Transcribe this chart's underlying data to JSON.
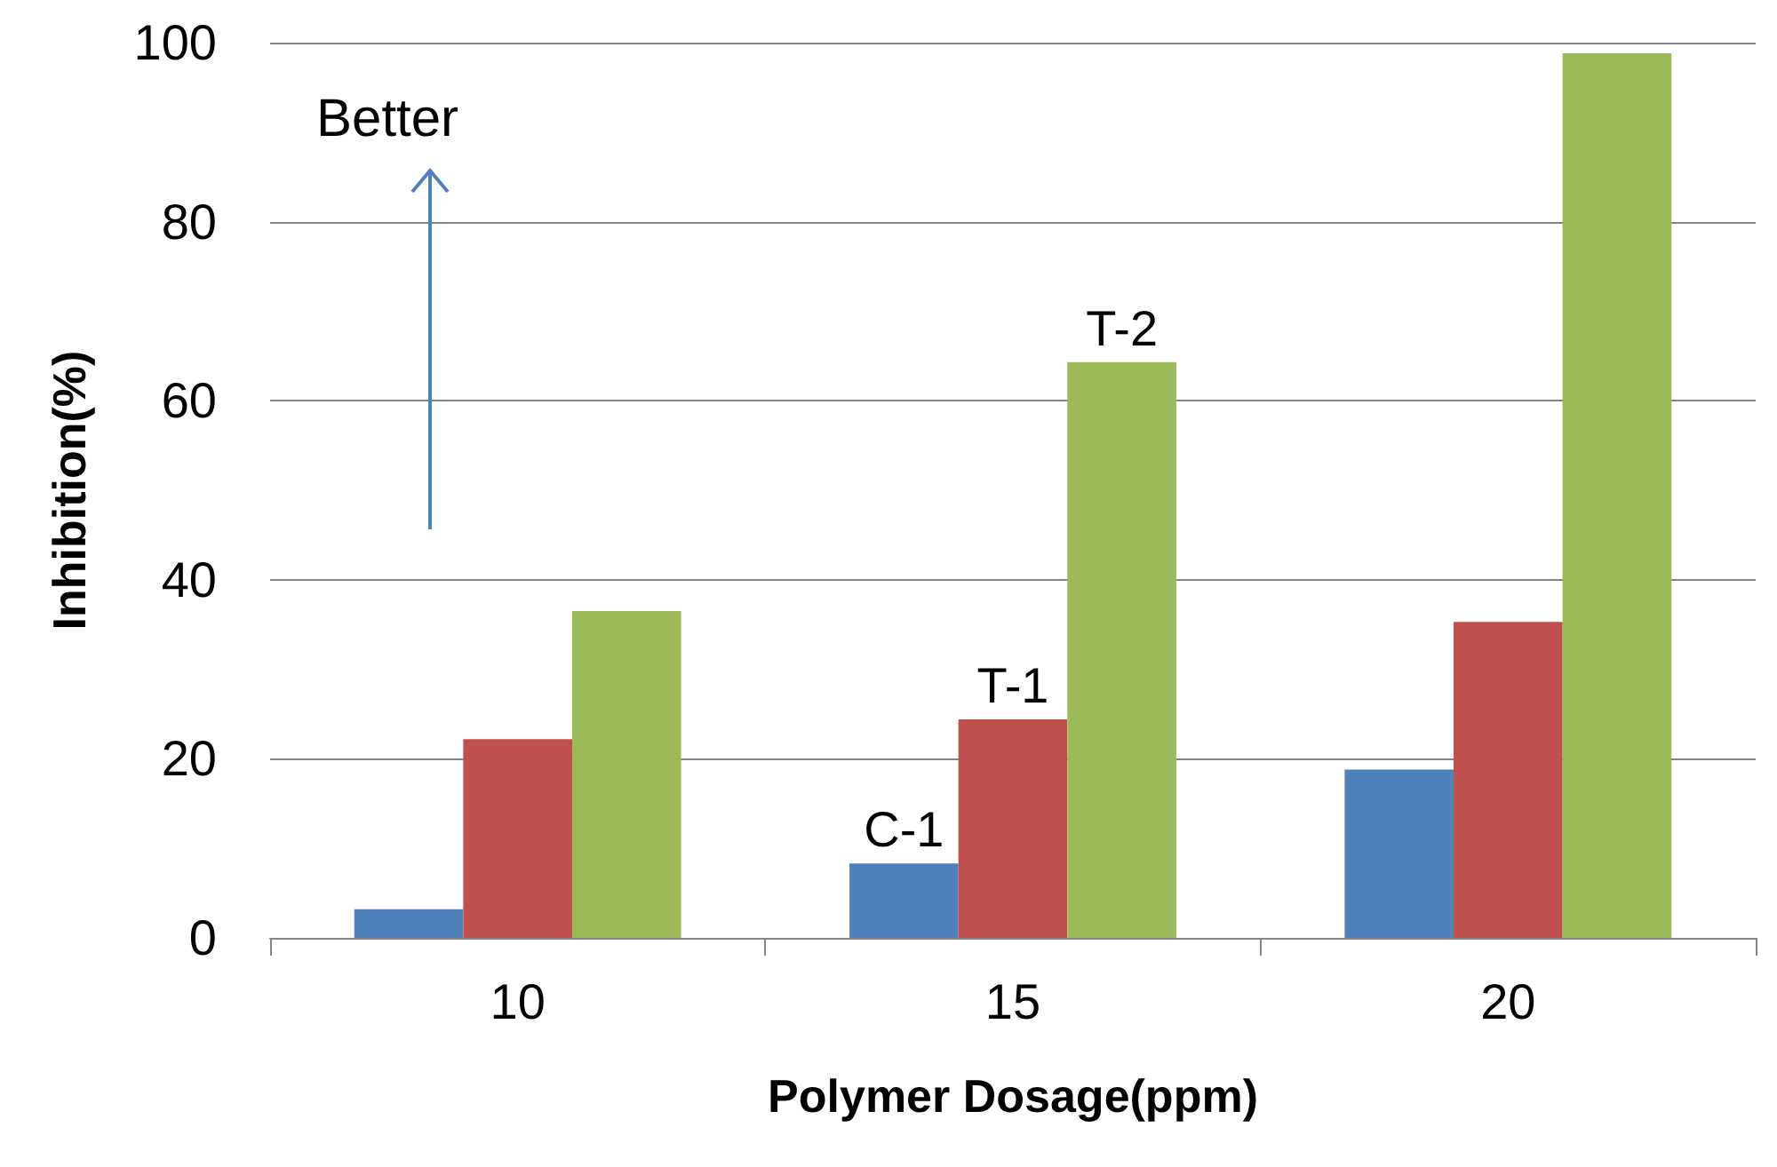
{
  "chart_data": {
    "type": "bar",
    "xlabel": "Polymer Dosage(ppm)",
    "ylabel": "Inhibition(%)",
    "categories": [
      "10",
      "15",
      "20"
    ],
    "series": [
      {
        "name": "C-1",
        "color": "#4f81bd",
        "values": [
          3.2,
          8.3,
          18.8
        ]
      },
      {
        "name": "T-1",
        "color": "#c0504d",
        "values": [
          22.2,
          24.4,
          35.3
        ]
      },
      {
        "name": "T-2",
        "color": "#9bbb59",
        "values": [
          36.5,
          64.3,
          98.8
        ]
      }
    ],
    "ylim": [
      0,
      100
    ],
    "yticks": [
      0,
      20,
      40,
      60,
      80,
      100
    ],
    "grid": "y",
    "legend": false,
    "annotations": [
      "Better"
    ]
  }
}
